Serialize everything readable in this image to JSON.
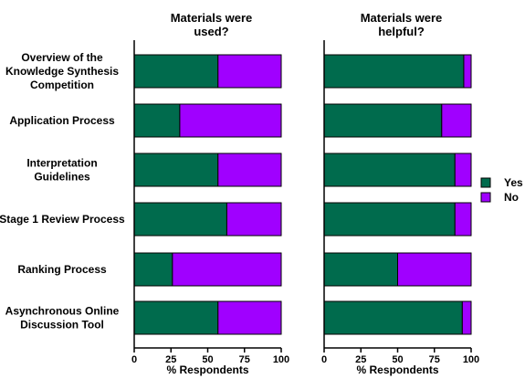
{
  "chart_data": {
    "type": "bar",
    "orientation": "horizontal",
    "stacked": true,
    "categories": [
      [
        "Overview of the",
        "Knowledge Synthesis",
        "Competition"
      ],
      [
        "Application Process"
      ],
      [
        "Interpretation",
        "Guidelines"
      ],
      [
        "Stage 1 Review Process"
      ],
      [
        "Ranking Process"
      ],
      [
        "Asynchronous Online",
        "Discussion Tool"
      ]
    ],
    "xlim": [
      0,
      100
    ],
    "xticks": [
      0,
      25,
      50,
      75,
      100
    ],
    "colors": {
      "Yes": "#006b4d",
      "No": "#a000ff"
    },
    "legend": {
      "position": "right",
      "entries": [
        "Yes",
        "No"
      ]
    },
    "panels": [
      {
        "title": [
          "Materials were",
          "used?"
        ],
        "xlabel": "% Respondents",
        "series": [
          {
            "name": "Yes",
            "values": [
              57,
              31,
              57,
              63,
              26,
              57
            ]
          },
          {
            "name": "No",
            "values": [
              43,
              69,
              43,
              37,
              74,
              43
            ]
          }
        ]
      },
      {
        "title": [
          "Materials were",
          "helpful?"
        ],
        "xlabel": "% Respondents",
        "series": [
          {
            "name": "Yes",
            "values": [
              95,
              80,
              89,
              89,
              50,
              94
            ]
          },
          {
            "name": "No",
            "values": [
              5,
              20,
              11,
              11,
              50,
              6
            ]
          }
        ]
      }
    ]
  }
}
